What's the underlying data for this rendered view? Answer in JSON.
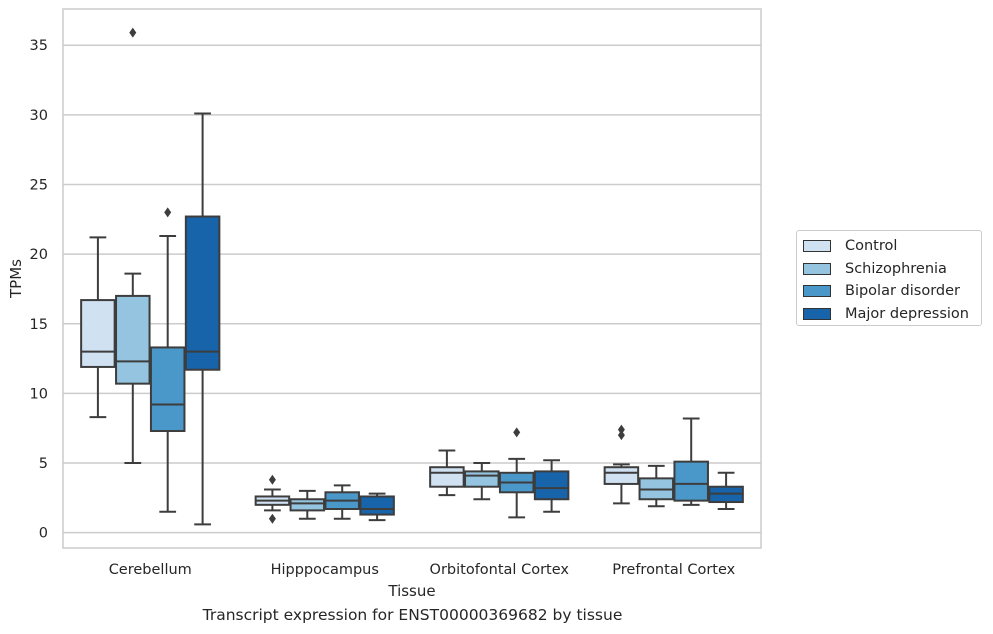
{
  "chart_data": {
    "type": "box",
    "xlabel": "Tissue",
    "ylabel": "TPMs",
    "ylim": [
      -1.1,
      37.6
    ],
    "yticks": [
      0,
      5,
      10,
      15,
      20,
      25,
      30,
      35
    ],
    "categories": [
      "Cerebellum",
      "Hipppocampus",
      "Orbitofontal Cortex",
      "Prefrontal Cortex"
    ],
    "grid": "horizontal",
    "legend_position": "right",
    "series": [
      {
        "name": "Control",
        "color": "#d0e1f2",
        "boxes": [
          {
            "whislo": 8.3,
            "q1": 11.9,
            "med": 13.0,
            "q3": 16.7,
            "whishi": 21.2,
            "fliers": []
          },
          {
            "whislo": 1.6,
            "q1": 2.0,
            "med": 2.3,
            "q3": 2.6,
            "whishi": 3.1,
            "fliers": [
              3.8,
              1.0
            ]
          },
          {
            "whislo": 2.7,
            "q1": 3.3,
            "med": 4.3,
            "q3": 4.7,
            "whishi": 5.9,
            "fliers": []
          },
          {
            "whislo": 2.1,
            "q1": 3.5,
            "med": 4.3,
            "q3": 4.7,
            "whishi": 4.9,
            "fliers": [
              7.4,
              7.0
            ]
          }
        ]
      },
      {
        "name": "Schizophrenia",
        "color": "#94c4df",
        "boxes": [
          {
            "whislo": 5.0,
            "q1": 10.7,
            "med": 12.3,
            "q3": 17.0,
            "whishi": 18.6,
            "fliers": [
              35.9
            ]
          },
          {
            "whislo": 1.0,
            "q1": 1.6,
            "med": 2.1,
            "q3": 2.4,
            "whishi": 3.0,
            "fliers": []
          },
          {
            "whislo": 2.4,
            "q1": 3.3,
            "med": 4.1,
            "q3": 4.4,
            "whishi": 5.0,
            "fliers": []
          },
          {
            "whislo": 1.9,
            "q1": 2.4,
            "med": 3.1,
            "q3": 3.9,
            "whishi": 4.8,
            "fliers": []
          }
        ]
      },
      {
        "name": "Bipolar disorder",
        "color": "#4a98c9",
        "boxes": [
          {
            "whislo": 1.5,
            "q1": 7.3,
            "med": 9.2,
            "q3": 13.3,
            "whishi": 21.3,
            "fliers": [
              23.0
            ]
          },
          {
            "whislo": 1.0,
            "q1": 1.7,
            "med": 2.3,
            "q3": 2.9,
            "whishi": 3.4,
            "fliers": []
          },
          {
            "whislo": 1.1,
            "q1": 2.9,
            "med": 3.6,
            "q3": 4.3,
            "whishi": 5.3,
            "fliers": [
              7.2
            ]
          },
          {
            "whislo": 2.0,
            "q1": 2.3,
            "med": 3.5,
            "q3": 5.1,
            "whishi": 8.2,
            "fliers": []
          }
        ]
      },
      {
        "name": "Major depression",
        "color": "#1764ab",
        "boxes": [
          {
            "whislo": 0.6,
            "q1": 11.7,
            "med": 13.0,
            "q3": 22.7,
            "whishi": 30.1,
            "fliers": []
          },
          {
            "whislo": 0.9,
            "q1": 1.3,
            "med": 1.7,
            "q3": 2.6,
            "whishi": 2.8,
            "fliers": []
          },
          {
            "whislo": 1.5,
            "q1": 2.4,
            "med": 3.2,
            "q3": 4.4,
            "whishi": 5.2,
            "fliers": []
          },
          {
            "whislo": 1.7,
            "q1": 2.2,
            "med": 2.8,
            "q3": 3.3,
            "whishi": 4.3,
            "fliers": []
          }
        ]
      }
    ]
  },
  "caption": "Transcript expression for ENST00000369682 by tissue"
}
